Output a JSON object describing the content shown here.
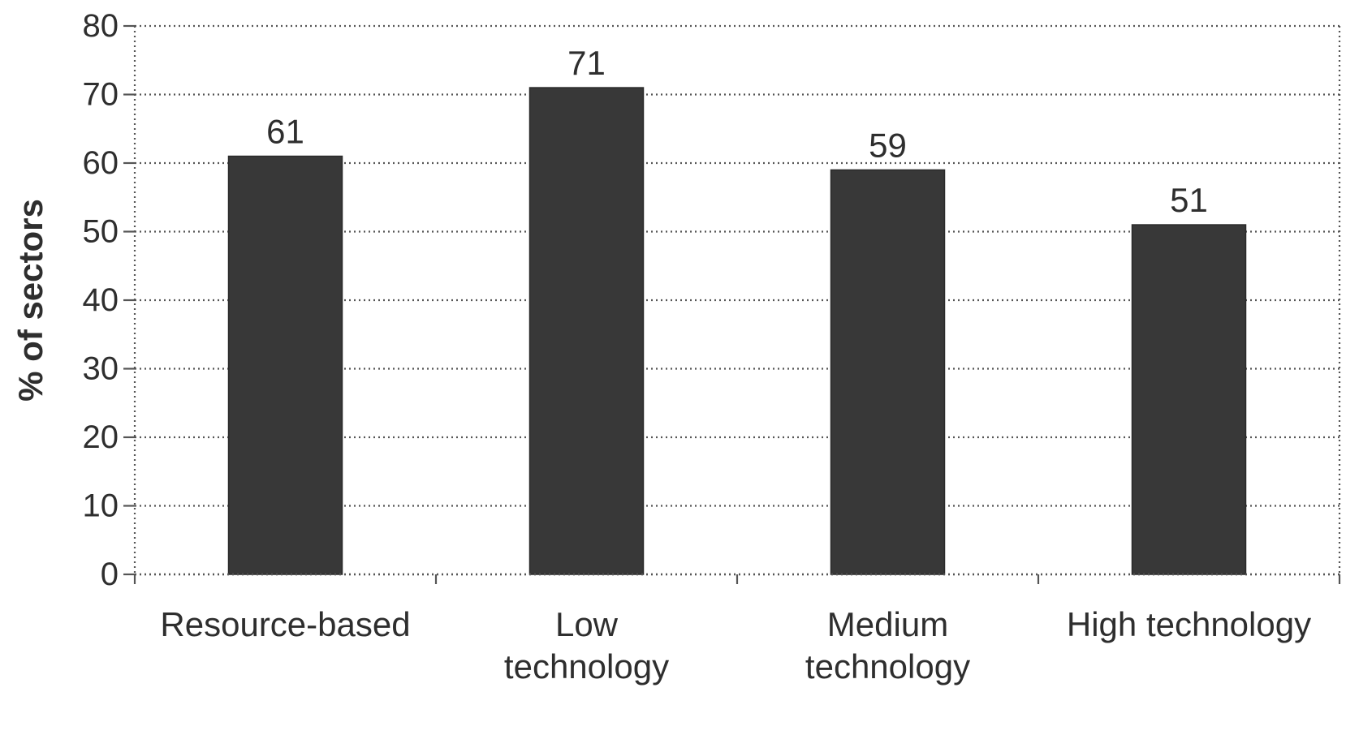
{
  "chart_data": {
    "type": "bar",
    "categories": [
      "Resource-based",
      "Low technology",
      "Medium technology",
      "High technology"
    ],
    "category_label_lines": [
      [
        "Resource-based"
      ],
      [
        "Low",
        "technology"
      ],
      [
        "Medium",
        "technology"
      ],
      [
        "High technology"
      ]
    ],
    "values": [
      61,
      71,
      59,
      51
    ],
    "data_labels": [
      "61",
      "71",
      "59",
      "51"
    ],
    "title": "",
    "xlabel": "",
    "ylabel": "% of sectors",
    "ylim": [
      0,
      80
    ],
    "yticks": [
      0,
      10,
      20,
      30,
      40,
      50,
      60,
      70,
      80
    ],
    "ytick_labels": [
      "0",
      "10",
      "20",
      "30",
      "40",
      "50",
      "60",
      "70",
      "80"
    ],
    "grid": "horizontal dotted",
    "legend": "none",
    "colors": {
      "bar": "#383838",
      "grid": "#555555",
      "text": "#2e2e2e"
    }
  }
}
